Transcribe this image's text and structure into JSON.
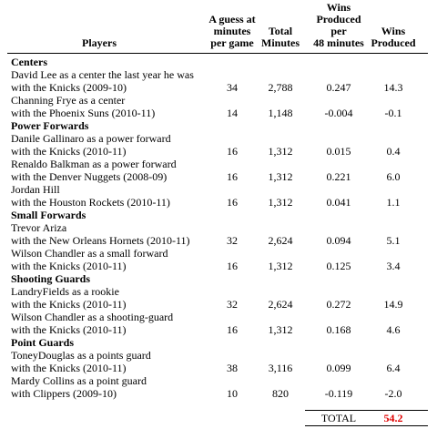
{
  "table": {
    "columns": [
      [
        "Players"
      ],
      [
        "A guess at",
        "minutes",
        "per game"
      ],
      [
        "Total",
        "Minutes"
      ],
      [
        "Wins",
        "Produced",
        "per",
        "48 minutes"
      ],
      [
        "Wins",
        "Produced"
      ]
    ],
    "sections": [
      {
        "title": "Centers",
        "rows": [
          {
            "lines": [
              "David Lee as a center the last year he was",
              "with the Knicks (2009-10)"
            ],
            "values": [
              "34",
              "2,788",
              "0.247",
              "14.3"
            ]
          },
          {
            "lines": [
              "Channing Frye as a center",
              "with the Phoenix Suns (2010-11)"
            ],
            "values": [
              "14",
              "1,148",
              "-0.004",
              "-0.1"
            ]
          }
        ]
      },
      {
        "title": "Power Forwards",
        "rows": [
          {
            "lines": [
              "Danile Gallinaro as a power forward",
              "with the Knicks (2010-11)"
            ],
            "values": [
              "16",
              "1,312",
              "0.015",
              "0.4"
            ]
          },
          {
            "lines": [
              "Renaldo Balkman as a power forward",
              "with the Denver Nuggets (2008-09)"
            ],
            "values": [
              "16",
              "1,312",
              "0.221",
              "6.0"
            ]
          },
          {
            "lines": [
              "Jordan Hill",
              "with the Houston Rockets (2010-11)"
            ],
            "values": [
              "16",
              "1,312",
              "0.041",
              "1.1"
            ]
          }
        ]
      },
      {
        "title": "Small Forwards",
        "rows": [
          {
            "lines": [
              "Trevor Ariza",
              "with the New Orleans Hornets (2010-11)"
            ],
            "values": [
              "32",
              "2,624",
              "0.094",
              "5.1"
            ]
          },
          {
            "lines": [
              "Wilson Chandler as a small forward",
              "with the Knicks (2010-11)"
            ],
            "values": [
              "16",
              "1,312",
              "0.125",
              "3.4"
            ]
          }
        ]
      },
      {
        "title": "Shooting Guards",
        "rows": [
          {
            "lines": [
              "LandryFields as a rookie",
              "with the Knicks (2010-11)"
            ],
            "values": [
              "32",
              "2,624",
              "0.272",
              "14.9"
            ]
          },
          {
            "lines": [
              "Wilson Chandler as a shooting-guard",
              "with the Knicks (2010-11)"
            ],
            "values": [
              "16",
              "1,312",
              "0.168",
              "4.6"
            ]
          }
        ]
      },
      {
        "title": "Point Guards",
        "rows": [
          {
            "lines": [
              "ToneyDouglas as a points guard",
              "with the Knicks (2010-11)"
            ],
            "values": [
              "38",
              "3,116",
              "0.099",
              "6.4"
            ]
          },
          {
            "lines": [
              "Mardy Collins as a point guard",
              "with Clippers (2009-10)"
            ],
            "values": [
              "10",
              "820",
              "-0.119",
              "-2.0"
            ]
          }
        ]
      }
    ],
    "total": {
      "label": "TOTAL",
      "value": "54.2"
    }
  }
}
